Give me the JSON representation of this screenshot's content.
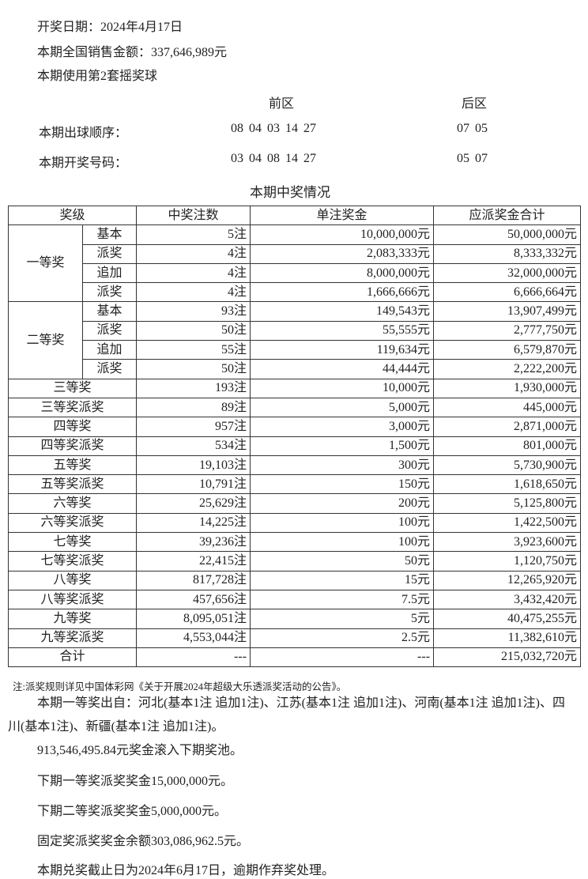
{
  "header": {
    "draw_date": "开奖日期：2024年4月17日",
    "sales": "本期全国销售金额：337,646,989元",
    "ball_set": "本期使用第2套摇奖球",
    "front_label": "前区",
    "back_label": "后区",
    "order_label": "本期出球顺序：",
    "order_front": "08 04 03 14 27",
    "order_back": "07 05",
    "result_label": "本期开奖号码：",
    "result_front": "03 04 08 14 27",
    "result_back": "05 07",
    "table_title": "本期中奖情况"
  },
  "table": {
    "columns": [
      "奖级",
      "中奖注数",
      "单注奖金",
      "应派奖金合计"
    ],
    "groups": [
      {
        "name": "一等奖",
        "rows": [
          {
            "sub": "基本",
            "count": "5注",
            "prize": "10,000,000元",
            "total": "50,000,000元"
          },
          {
            "sub": "派奖",
            "count": "4注",
            "prize": "2,083,333元",
            "total": "8,333,332元"
          },
          {
            "sub": "追加",
            "count": "4注",
            "prize": "8,000,000元",
            "total": "32,000,000元"
          },
          {
            "sub": "派奖",
            "count": "4注",
            "prize": "1,666,666元",
            "total": "6,666,664元"
          }
        ]
      },
      {
        "name": "二等奖",
        "rows": [
          {
            "sub": "基本",
            "count": "93注",
            "prize": "149,543元",
            "total": "13,907,499元"
          },
          {
            "sub": "派奖",
            "count": "50注",
            "prize": "55,555元",
            "total": "2,777,750元"
          },
          {
            "sub": "追加",
            "count": "55注",
            "prize": "119,634元",
            "total": "6,579,870元"
          },
          {
            "sub": "派奖",
            "count": "50注",
            "prize": "44,444元",
            "total": "2,222,200元"
          }
        ]
      }
    ],
    "rows": [
      {
        "level": "三等奖",
        "count": "193注",
        "prize": "10,000元",
        "total": "1,930,000元"
      },
      {
        "level": "三等奖派奖",
        "count": "89注",
        "prize": "5,000元",
        "total": "445,000元"
      },
      {
        "level": "四等奖",
        "count": "957注",
        "prize": "3,000元",
        "total": "2,871,000元"
      },
      {
        "level": "四等奖派奖",
        "count": "534注",
        "prize": "1,500元",
        "total": "801,000元"
      },
      {
        "level": "五等奖",
        "count": "19,103注",
        "prize": "300元",
        "total": "5,730,900元"
      },
      {
        "level": "五等奖派奖",
        "count": "10,791注",
        "prize": "150元",
        "total": "1,618,650元"
      },
      {
        "level": "六等奖",
        "count": "25,629注",
        "prize": "200元",
        "total": "5,125,800元"
      },
      {
        "level": "六等奖派奖",
        "count": "14,225注",
        "prize": "100元",
        "total": "1,422,500元"
      },
      {
        "level": "七等奖",
        "count": "39,236注",
        "prize": "100元",
        "total": "3,923,600元"
      },
      {
        "level": "七等奖派奖",
        "count": "22,415注",
        "prize": "50元",
        "total": "1,120,750元"
      },
      {
        "level": "八等奖",
        "count": "817,728注",
        "prize": "15元",
        "total": "12,265,920元"
      },
      {
        "level": "八等奖派奖",
        "count": "457,656注",
        "prize": "7.5元",
        "total": "3,432,420元"
      },
      {
        "level": "九等奖",
        "count": "8,095,051注",
        "prize": "5元",
        "total": "40,475,255元"
      },
      {
        "level": "九等奖派奖",
        "count": "4,553,044注",
        "prize": "2.5元",
        "total": "11,382,610元"
      },
      {
        "level": "合计",
        "count": "---",
        "prize": "---",
        "total": "215,032,720元"
      }
    ]
  },
  "footer": {
    "note": "注:派奖规则详见中国体彩网《关于开展2024年超级大乐透派奖活动的公告》。",
    "first_prize_origin": "本期一等奖出自：河北(基本1注 追加1注)、江苏(基本1注 追加1注)、河南(基本1注 追加1注)、四川(基本1注)、新疆(基本1注 追加1注)。",
    "rollover": "913,546,495.84元奖金滚入下期奖池。",
    "next_first_bonus": "下期一等奖派奖奖金15,000,000元。",
    "next_second_bonus": "下期二等奖派奖奖金5,000,000元。",
    "fixed_bonus_balance": "固定奖派奖奖金余额303,086,962.5元。",
    "deadline": "本期兑奖截止日为2024年6月17日，逾期作弃奖处理。"
  }
}
